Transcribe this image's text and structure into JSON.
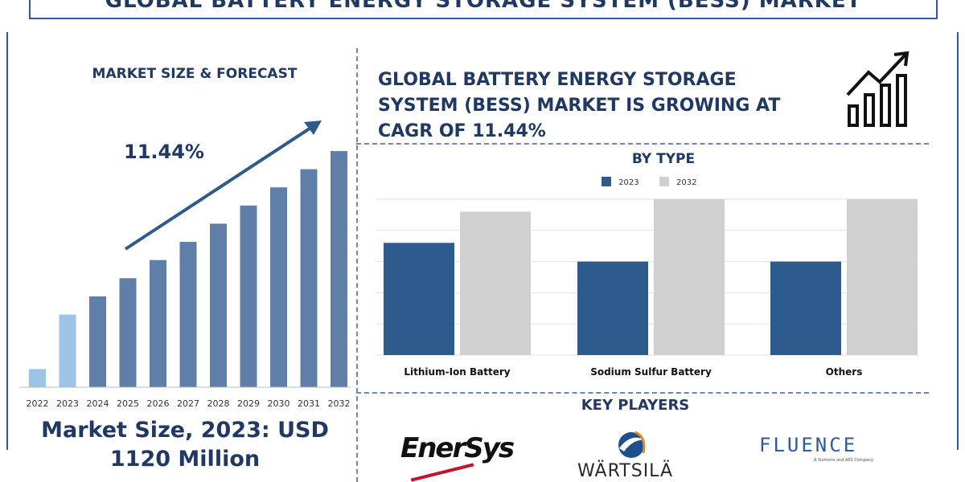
{
  "banner": {
    "title": "GLOBAL BATTERY ENERGY STORAGE SYSTEM (BESS) MARKET"
  },
  "left_panel": {
    "title": "MARKET SIZE & FORECAST",
    "cagr": "11.44%",
    "market_size_line1": "Market Size, 2023: USD",
    "market_size_line2": "1120 Million"
  },
  "headline": {
    "line1": "GLOBAL BATTERY ENERGY STORAGE",
    "line2": "SYSTEM (BESS) MARKET IS GROWING AT",
    "line3": "CAGR OF 11.44%"
  },
  "icons": {
    "growth": "bar-growth-icon"
  },
  "key_players": {
    "title": "KEY PLAYERS",
    "logos": [
      "EnerSys",
      "WÄRTSILÄ",
      "FLUENCE"
    ],
    "fluence_sub": "A Siemens and AES Company"
  },
  "colors": {
    "dark_bar": "#5f7fa8",
    "light_bar": "#9dc3e6",
    "series_2023": "#2e5b8e",
    "series_2032": "#d0d0d0",
    "title": "#1f3864"
  },
  "chart_data": [
    {
      "type": "bar",
      "title": "MARKET SIZE & FORECAST",
      "categories": [
        "2022",
        "2023",
        "2024",
        "2025",
        "2026",
        "2027",
        "2028",
        "2029",
        "2030",
        "2031",
        "2032"
      ],
      "values": [
        1,
        4,
        5,
        6,
        7,
        8,
        9,
        10,
        11,
        12,
        13
      ],
      "highlighted": [
        "2022",
        "2023"
      ],
      "ylim": [
        0,
        13
      ],
      "annotation": "11.44%"
    },
    {
      "type": "bar",
      "title": "BY TYPE",
      "categories": [
        "Lithium-Ion Battery",
        "Sodium Sulfur Battery",
        "Others"
      ],
      "series": [
        {
          "name": "2023",
          "values": [
            3.6,
            3.0,
            3.0
          ]
        },
        {
          "name": "2032",
          "values": [
            4.6,
            5.0,
            5.0
          ]
        }
      ],
      "ylim": [
        0,
        5
      ],
      "grid": true,
      "legend": "top"
    }
  ]
}
